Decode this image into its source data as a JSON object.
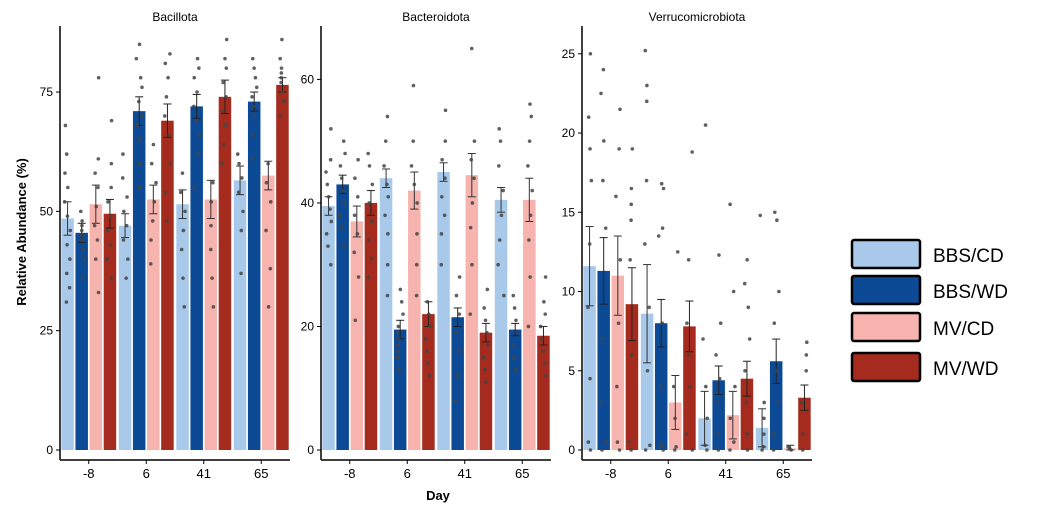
{
  "figure": {
    "ylabel": "Relative Abundance (%)",
    "xlabel": "Day"
  },
  "legend": {
    "placement": "right",
    "items": [
      {
        "label": "BBS/CD",
        "color": "#a9c9eb"
      },
      {
        "label": "BBS/WD",
        "color": "#0d4a96"
      },
      {
        "label": "MV/CD",
        "color": "#f7b3ae"
      },
      {
        "label": "MV/WD",
        "color": "#a42b1d"
      }
    ]
  },
  "chart_data": [
    {
      "type": "bar",
      "title": "Bacillota",
      "categories": [
        "-8",
        "6",
        "41",
        "65"
      ],
      "ylim": [
        0,
        88
      ],
      "yticks": [
        0,
        25,
        50,
        75
      ],
      "series": [
        {
          "name": "BBS/CD",
          "values": [
            48.5,
            47,
            51.5,
            56.5
          ],
          "errors": [
            3.5,
            2.5,
            3,
            3
          ]
        },
        {
          "name": "BBS/WD",
          "values": [
            45.5,
            71,
            72,
            73
          ],
          "errors": [
            2,
            3,
            2.5,
            2
          ]
        },
        {
          "name": "MV/CD",
          "values": [
            51.5,
            52.5,
            52.5,
            57.5
          ],
          "errors": [
            4,
            3,
            4,
            3
          ]
        },
        {
          "name": "MV/WD",
          "values": [
            49.5,
            69,
            74,
            76.5
          ],
          "errors": [
            3,
            3.5,
            3.5,
            1.5
          ]
        }
      ],
      "points": [
        [
          [
            31,
            34,
            37,
            40,
            43,
            46,
            49,
            52,
            55,
            58,
            62,
            68
          ],
          [
            36,
            40,
            42,
            44,
            45,
            46,
            47,
            48,
            50
          ],
          [
            33,
            40,
            44,
            47,
            51,
            55,
            58,
            61,
            78
          ],
          [
            36,
            40,
            43,
            46,
            49,
            52,
            55,
            60,
            69
          ]
        ],
        [
          [
            36,
            40,
            44,
            47,
            50,
            53,
            57,
            62
          ],
          [
            55,
            60,
            65,
            68,
            70,
            73,
            76,
            78,
            82,
            85
          ],
          [
            39,
            44,
            48,
            52,
            56,
            60,
            64
          ],
          [
            48,
            54,
            60,
            66,
            70,
            74,
            78,
            81,
            83
          ]
        ],
        [
          [
            30,
            36,
            42,
            46,
            50,
            54,
            58
          ],
          [
            55,
            62,
            66,
            69,
            72,
            75,
            78,
            80,
            82
          ],
          [
            30,
            36,
            42,
            47,
            52,
            56
          ],
          [
            60,
            64,
            68,
            71,
            74,
            77,
            80,
            82,
            86
          ]
        ],
        [
          [
            37,
            46,
            50,
            54,
            57,
            60,
            62
          ],
          [
            61,
            66,
            70,
            72,
            74,
            76,
            78,
            80,
            82
          ],
          [
            30,
            38,
            46,
            52,
            56,
            60
          ],
          [
            70,
            73,
            75,
            77,
            78,
            79,
            80,
            82,
            86
          ]
        ]
      ]
    },
    {
      "type": "bar",
      "title": "Bacteroidota",
      "categories": [
        "-8",
        "6",
        "41",
        "65"
      ],
      "ylim": [
        0,
        68
      ],
      "yticks": [
        0,
        20,
        40,
        60
      ],
      "series": [
        {
          "name": "BBS/CD",
          "values": [
            39.5,
            44,
            45,
            40.5
          ],
          "errors": [
            1.5,
            1.5,
            1.5,
            2
          ]
        },
        {
          "name": "BBS/WD",
          "values": [
            43,
            19.5,
            21.5,
            19.5
          ],
          "errors": [
            1.5,
            1.5,
            1.5,
            1
          ]
        },
        {
          "name": "MV/CD",
          "values": [
            37,
            42,
            44.5,
            40.5
          ],
          "errors": [
            2.5,
            3,
            3.5,
            3.5
          ]
        },
        {
          "name": "MV/WD",
          "values": [
            40,
            22,
            19,
            18.5
          ],
          "errors": [
            2,
            2,
            1.5,
            1.5
          ]
        }
      ],
      "points": [
        [
          [
            30,
            33,
            35,
            37,
            39,
            41,
            43,
            45,
            47,
            52
          ],
          [
            33,
            36,
            38,
            40,
            42,
            44,
            46,
            48,
            50
          ],
          [
            21,
            28,
            32,
            35,
            38,
            41,
            44,
            47
          ],
          [
            28,
            31,
            34,
            37,
            40,
            43,
            46,
            48
          ]
        ],
        [
          [
            25,
            30,
            35,
            38,
            41,
            43,
            46,
            50,
            54
          ],
          [
            13,
            15,
            16,
            17,
            18,
            19,
            20,
            22,
            24,
            26
          ],
          [
            25,
            30,
            35,
            40,
            43,
            46,
            50,
            59
          ],
          [
            12,
            14,
            16,
            18,
            20,
            22,
            24
          ]
        ],
        [
          [
            30,
            35,
            38,
            41,
            44,
            47,
            50,
            55
          ],
          [
            8,
            12,
            16,
            19,
            22,
            25,
            28
          ],
          [
            22,
            30,
            36,
            40,
            44,
            47,
            50,
            65
          ],
          [
            11,
            13,
            15,
            17,
            19,
            21,
            23,
            26
          ]
        ],
        [
          [
            25,
            30,
            34,
            38,
            42,
            46,
            50,
            52
          ],
          [
            13,
            15,
            17,
            19,
            21,
            23,
            25
          ],
          [
            20,
            28,
            34,
            38,
            42,
            46,
            50,
            54,
            56
          ],
          [
            12,
            14,
            16,
            18,
            20,
            22,
            24,
            28
          ]
        ]
      ]
    },
    {
      "type": "bar",
      "title": "Verrucomicrobiota",
      "categories": [
        "-8",
        "6",
        "41",
        "65"
      ],
      "ylim": [
        0,
        26.5
      ],
      "yticks": [
        0,
        5,
        10,
        15,
        20,
        25
      ],
      "series": [
        {
          "name": "BBS/CD",
          "values": [
            11.6,
            8.6,
            2,
            1.4
          ],
          "errors": [
            2.5,
            3.1,
            1.7,
            1.2
          ]
        },
        {
          "name": "BBS/WD",
          "values": [
            11.3,
            8,
            4.4,
            5.6
          ],
          "errors": [
            2.1,
            1.5,
            0.9,
            1.4
          ]
        },
        {
          "name": "MV/CD",
          "values": [
            11,
            3,
            2.2,
            0.1
          ],
          "errors": [
            2.5,
            1.7,
            1.5,
            0.2
          ]
        },
        {
          "name": "MV/WD",
          "values": [
            9.2,
            7.8,
            4.5,
            3.3
          ],
          "errors": [
            2.3,
            1.6,
            1.1,
            0.8
          ]
        }
      ],
      "points": [
        [
          [
            0,
            0.5,
            4.5,
            9,
            13,
            17,
            19,
            21,
            25
          ],
          [
            0,
            0.5,
            3,
            7,
            14,
            17,
            19.5,
            22.5,
            24
          ],
          [
            0,
            0.5,
            4,
            8,
            12,
            16,
            19,
            21.5
          ],
          [
            0,
            0.5,
            6,
            12,
            14.5,
            15.5,
            16.5,
            19
          ]
        ],
        [
          [
            0,
            0.3,
            5,
            9,
            13,
            17,
            22,
            23,
            25.2
          ],
          [
            0,
            0.3,
            4,
            8,
            13.5,
            14,
            16.5,
            16.8
          ],
          [
            0,
            0.2,
            2,
            4,
            12.5
          ],
          [
            0,
            1,
            4,
            6,
            8,
            12,
            18.8
          ]
        ],
        [
          [
            0,
            0.3,
            2,
            4,
            7,
            20.5
          ],
          [
            0,
            1,
            3,
            4.5,
            6,
            8,
            12.3
          ],
          [
            0,
            0.5,
            2,
            4,
            10,
            15.5
          ],
          [
            0,
            1,
            3,
            5,
            7,
            9,
            10.5,
            12
          ]
        ],
        [
          [
            0,
            0.2,
            1,
            2,
            3,
            14.8
          ],
          [
            0,
            1,
            3,
            5,
            8,
            10,
            14.5,
            15
          ],
          [
            0,
            0.1,
            0.2
          ],
          [
            0,
            1,
            3,
            5,
            6,
            6.8
          ]
        ]
      ]
    }
  ]
}
